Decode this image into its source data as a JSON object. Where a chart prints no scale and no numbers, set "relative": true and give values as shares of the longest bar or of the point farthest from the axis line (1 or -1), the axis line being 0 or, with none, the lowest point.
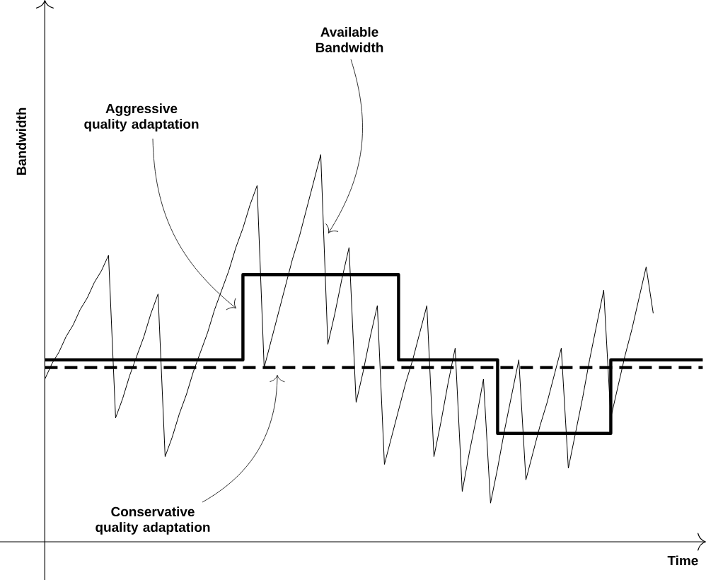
{
  "chart_data": {
    "type": "line",
    "relative": true,
    "xlabel": "Time",
    "ylabel": "Bandwidth",
    "annotations": [
      "Available Bandwidth",
      "Aggressive quality adaptation",
      "Conservative quality adaptation"
    ],
    "categories": [
      null,
      null,
      null,
      null,
      null,
      null,
      null,
      null,
      null,
      null,
      null,
      null,
      null,
      null,
      null,
      null,
      null,
      null,
      null,
      null,
      null,
      null,
      null,
      null,
      null,
      null,
      null,
      null,
      null,
      null,
      null,
      null,
      null,
      null,
      null,
      null,
      null,
      null,
      null,
      null,
      null,
      null,
      null,
      null,
      null,
      null,
      null,
      null,
      null,
      null,
      null,
      null,
      null,
      null,
      null,
      null,
      null,
      null,
      null,
      null,
      null,
      null,
      null,
      null,
      null,
      null,
      null,
      null,
      null,
      null,
      null,
      null,
      null,
      null,
      null,
      null,
      null,
      null,
      null,
      null,
      null,
      null,
      null,
      null,
      null,
      null,
      null,
      null,
      null,
      null,
      null,
      null,
      null,
      null
    ],
    "series": [
      {
        "type": "line",
        "color": "#000000",
        "line_style": "solid",
        "values": [
          0.42,
          0.46,
          0.49,
          0.53,
          0.56,
          0.6,
          0.63,
          0.67,
          0.7,
          0.74,
          0.32,
          0.37,
          0.43,
          0.48,
          0.53,
          0.59,
          0.64,
          0.22,
          0.27,
          0.33,
          0.38,
          0.44,
          0.49,
          0.54,
          0.6,
          0.65,
          0.7,
          0.76,
          0.81,
          0.87,
          0.92,
          0.45,
          0.52,
          0.59,
          0.66,
          0.73,
          0.79,
          0.86,
          0.93,
          1.0,
          0.51,
          0.59,
          0.68,
          0.76,
          0.36,
          0.44,
          0.53,
          0.61,
          0.2,
          0.27,
          0.34,
          0.41,
          0.47,
          0.54,
          0.61,
          0.22,
          0.31,
          0.41,
          0.5,
          0.13,
          0.23,
          0.32,
          0.42,
          0.1,
          0.19,
          0.29,
          0.38,
          0.47,
          0.16,
          0.23,
          0.3,
          0.36,
          0.43,
          0.5,
          0.19,
          0.28,
          0.37,
          0.47,
          0.56,
          0.65,
          0.32,
          0.4,
          0.48,
          0.55,
          0.63,
          0.71,
          0.59,
          null,
          null,
          null,
          null,
          null,
          null,
          null
        ]
      },
      {
        "type": "step",
        "color": "#000000",
        "line_style": "solid",
        "values": [
          0.47,
          0.47,
          0.47,
          0.47,
          0.47,
          0.47,
          0.47,
          0.47,
          0.47,
          0.47,
          0.47,
          0.47,
          0.47,
          0.47,
          0.47,
          0.47,
          0.47,
          0.47,
          0.47,
          0.47,
          0.47,
          0.47,
          0.47,
          0.47,
          0.47,
          0.47,
          0.47,
          0.47,
          0.69,
          0.69,
          0.69,
          0.69,
          0.69,
          0.69,
          0.69,
          0.69,
          0.69,
          0.69,
          0.69,
          0.69,
          0.69,
          0.69,
          0.69,
          0.69,
          0.69,
          0.69,
          0.69,
          0.69,
          0.69,
          0.69,
          0.47,
          0.47,
          0.47,
          0.47,
          0.47,
          0.47,
          0.47,
          0.47,
          0.47,
          0.47,
          0.47,
          0.47,
          0.47,
          0.47,
          0.28,
          0.28,
          0.28,
          0.28,
          0.28,
          0.28,
          0.28,
          0.28,
          0.28,
          0.28,
          0.28,
          0.28,
          0.28,
          0.28,
          0.28,
          0.28,
          0.47,
          0.47,
          0.47,
          0.47,
          0.47,
          0.47,
          0.47,
          0.47,
          0.47,
          0.47,
          0.47,
          0.47,
          0.47,
          0.47
        ]
      },
      {
        "type": "line",
        "color": "#000000",
        "line_style": "dashed",
        "values": [
          0.45,
          0.45,
          0.45,
          0.45,
          0.45,
          0.45,
          0.45,
          0.45,
          0.45,
          0.45,
          0.45,
          0.45,
          0.45,
          0.45,
          0.45,
          0.45,
          0.45,
          0.45,
          0.45,
          0.45,
          0.45,
          0.45,
          0.45,
          0.45,
          0.45,
          0.45,
          0.45,
          0.45,
          0.45,
          0.45,
          0.45,
          0.45,
          0.45,
          0.45,
          0.45,
          0.45,
          0.45,
          0.45,
          0.45,
          0.45,
          0.45,
          0.45,
          0.45,
          0.45,
          0.45,
          0.45,
          0.45,
          0.45,
          0.45,
          0.45,
          0.45,
          0.45,
          0.45,
          0.45,
          0.45,
          0.45,
          0.45,
          0.45,
          0.45,
          0.45,
          0.45,
          0.45,
          0.45,
          0.45,
          0.45,
          0.45,
          0.45,
          0.45,
          0.45,
          0.45,
          0.45,
          0.45,
          0.45,
          0.45,
          0.45,
          0.45,
          0.45,
          0.45,
          0.45,
          0.45,
          0.45,
          0.45,
          0.45,
          0.45,
          0.45,
          0.45,
          0.45,
          0.45,
          0.45,
          0.45,
          0.45,
          0.45,
          0.45,
          0.45
        ]
      }
    ]
  }
}
